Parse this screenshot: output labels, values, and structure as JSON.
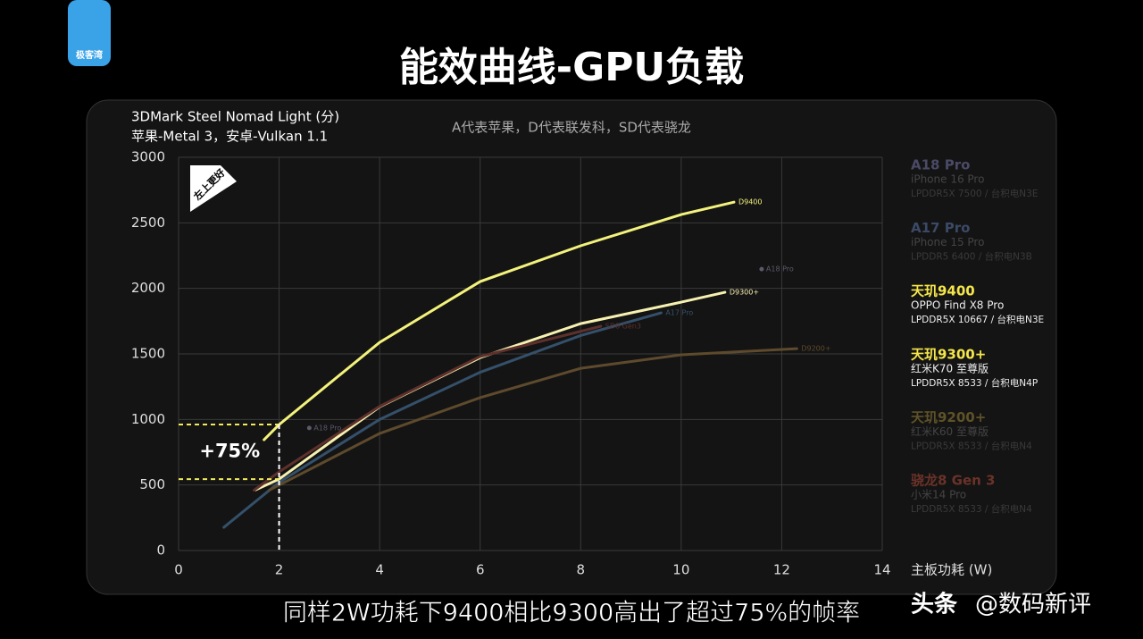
{
  "video": {
    "logo": "极客湾",
    "caption": "同样2W功耗下9400相比9300高出了超过75%的帧率",
    "watermark": [
      "头条",
      "@数码新评"
    ]
  },
  "chart_data": {
    "type": "line",
    "title": "能效曲线-GPU负载",
    "subtitle": "苹果-Metal 3，安卓-Vulkan 1.1",
    "y_label": "3DMark Steel Nomad Light (分)",
    "x_label": "主板功耗 (W)",
    "note": "A代表苹果，D代表联发科，SD代表骁龙",
    "badge": "左上更好",
    "xlim": [
      0,
      14
    ],
    "xticks": [
      0,
      2,
      4,
      6,
      8,
      10,
      12,
      14
    ],
    "ylim": [
      0,
      3000
    ],
    "yticks": [
      0,
      500,
      1000,
      1500,
      2000,
      2500,
      3000
    ],
    "grid": true,
    "annotation": {
      "x": 2,
      "values": [
        961,
        545
      ],
      "label": "+75%",
      "color": "#f2ea5a"
    },
    "series": [
      {
        "name": "A18 Pro",
        "device": "iPhone 16 Pro",
        "memory": "LPDDR5X 7500 / 台积电N3E",
        "end_label": "A18 Pro",
        "style": "markers",
        "color": "#5a5a6a",
        "legend_color": "#4a4a66",
        "x": [
          2.6,
          11.6
        ],
        "values": [
          935,
          2147
        ]
      },
      {
        "name": "A17 Pro",
        "device": "iPhone 15 Pro",
        "memory": "LPDDR5 6400 / 台积电N3B",
        "end_label": "A17 Pro",
        "style": "line",
        "color": "#34506a",
        "legend_color": "#3a4a66",
        "x": [
          0.9,
          2,
          4,
          6,
          8,
          9.6
        ],
        "values": [
          177,
          520,
          1000,
          1360,
          1640,
          1813
        ]
      },
      {
        "name": "天玑9400",
        "device": "OPPO Find X8 Pro",
        "memory": "LPDDR5X 10667 / 台积电N3E",
        "end_label": "D9400",
        "style": "line",
        "color": "#f3f27c",
        "legend_color": "#f5e64a",
        "x": [
          1.7,
          2,
          4,
          6,
          8,
          10,
          11.05
        ],
        "values": [
          845,
          961,
          1588,
          2052,
          2325,
          2563,
          2658
        ]
      },
      {
        "name": "天玑9300+",
        "device": "红米K70 至尊版",
        "memory": "LPDDR5X 8533 / 台积电N4P",
        "end_label": "D9300+",
        "style": "line",
        "color": "#f6f1b0",
        "legend_color": "#f5e64a",
        "x": [
          1.53,
          2,
          4,
          6,
          8,
          10,
          10.87
        ],
        "values": [
          463,
          545,
          1097,
          1472,
          1731,
          1895,
          1970
        ]
      },
      {
        "name": "天玑9200+",
        "device": "红米K60 至尊版",
        "memory": "LPDDR5X 8533 / 台积电N4",
        "end_label": "D9200+",
        "style": "line",
        "color": "#5e4a2c",
        "legend_color": "#5e5228",
        "x": [
          1.8,
          4,
          6,
          8,
          10,
          12.3
        ],
        "values": [
          460,
          893,
          1166,
          1390,
          1493,
          1540
        ]
      },
      {
        "name": "骁龙8 Gen 3",
        "device": "小米14 Pro",
        "memory": "LPDDR5X 8533 / 台积电N4",
        "end_label": "SD8 Gen3",
        "style": "line",
        "color": "#5e302c",
        "legend_color": "#6a3228",
        "x": [
          1.5,
          2,
          4,
          6,
          8.4
        ],
        "values": [
          460,
          600,
          1100,
          1480,
          1711
        ]
      }
    ]
  }
}
